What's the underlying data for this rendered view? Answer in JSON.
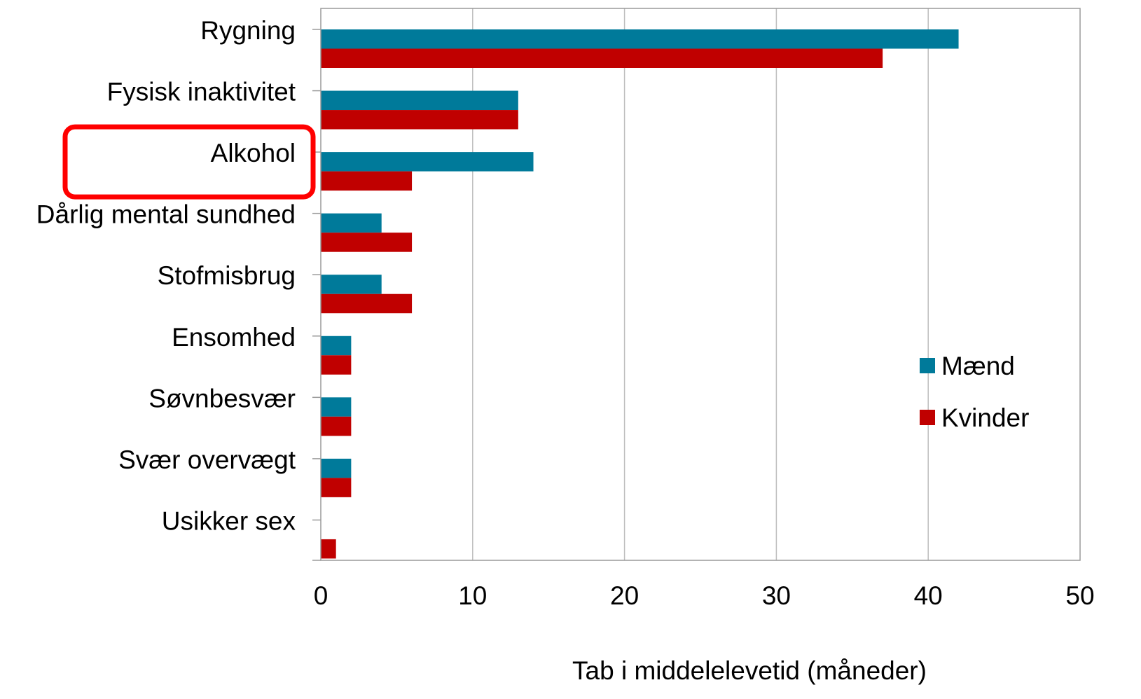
{
  "chart_data": {
    "type": "bar",
    "orientation": "horizontal",
    "categories": [
      "Rygning",
      "Fysisk inaktivitet",
      "Alkohol",
      "Dårlig mental sundhed",
      "Stofmisbrug",
      "Ensomhed",
      "Søvnbesvær",
      "Svær overvægt",
      "Usikker sex"
    ],
    "series": [
      {
        "name": "Mænd",
        "color": "#007a9a",
        "values": [
          42,
          13,
          14,
          4,
          4,
          2,
          2,
          2,
          0
        ]
      },
      {
        "name": "Kvinder",
        "color": "#c00000",
        "values": [
          37,
          13,
          6,
          6,
          6,
          2,
          2,
          2,
          1
        ]
      }
    ],
    "title": "",
    "xlabel": "Tab i middelelevetid (måneder)",
    "ylabel": "",
    "xlim": [
      0,
      50
    ],
    "xticks": [
      "0",
      "10",
      "20",
      "30",
      "40",
      "50"
    ],
    "grid": true,
    "legend_position": "right",
    "highlighted_category": "Alkohol",
    "highlight_color": "#ff0000"
  }
}
